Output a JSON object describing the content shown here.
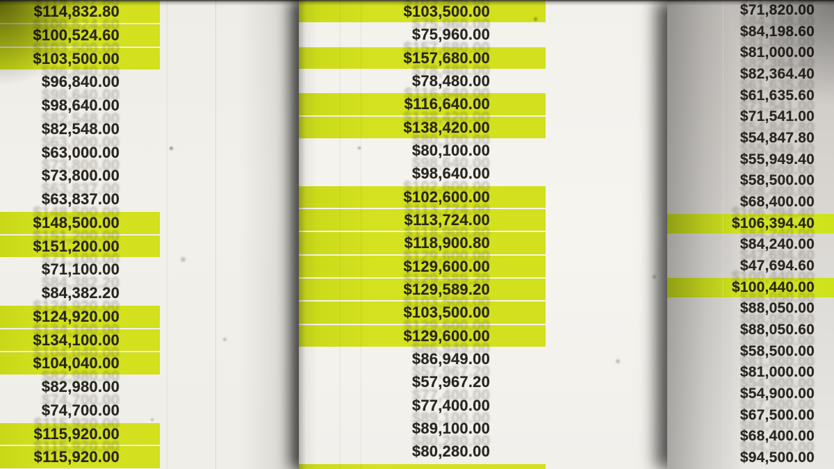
{
  "document": {
    "description_colors": {
      "highlight_yellow": "#d2e01d",
      "text": "#28251f",
      "panel_light_bg": "#f2f0ea",
      "panel_gray_bg": "#d6d3cf"
    },
    "currency_symbol": "$"
  },
  "panels": [
    {
      "name": "left-spreadsheet-column",
      "rows": [
        {
          "value": "$114,832.80",
          "highlighted": true
        },
        {
          "value": "$100,524.60",
          "highlighted": true
        },
        {
          "value": "$103,500.00",
          "highlighted": true
        },
        {
          "value": "$96,840.00",
          "highlighted": false
        },
        {
          "value": "$98,640.00",
          "highlighted": false
        },
        {
          "value": "$82,548.00",
          "highlighted": false
        },
        {
          "value": "$63,000.00",
          "highlighted": false
        },
        {
          "value": "$73,800.00",
          "highlighted": false
        },
        {
          "value": "$63,837.00",
          "highlighted": false
        },
        {
          "value": "$148,500.00",
          "highlighted": true
        },
        {
          "value": "$151,200.00",
          "highlighted": true
        },
        {
          "value": "$71,100.00",
          "highlighted": false
        },
        {
          "value": "$84,382.20",
          "highlighted": false
        },
        {
          "value": "$124,920.00",
          "highlighted": true
        },
        {
          "value": "$134,100.00",
          "highlighted": true
        },
        {
          "value": "$104,040.00",
          "highlighted": true
        },
        {
          "value": "$82,980.00",
          "highlighted": false
        },
        {
          "value": "$74,700.00",
          "highlighted": false
        },
        {
          "value": "$115,920.00",
          "highlighted": true
        },
        {
          "value": "$115,920.00",
          "highlighted": true
        }
      ]
    },
    {
      "name": "middle-spreadsheet-column",
      "rows": [
        {
          "value": "$103,500.00",
          "highlighted": true
        },
        {
          "value": "$75,960.00",
          "highlighted": false
        },
        {
          "value": "$157,680.00",
          "highlighted": true
        },
        {
          "value": "$78,480.00",
          "highlighted": false
        },
        {
          "value": "$116,640.00",
          "highlighted": true
        },
        {
          "value": "$138,420.00",
          "highlighted": true
        },
        {
          "value": "$80,100.00",
          "highlighted": false
        },
        {
          "value": "$98,640.00",
          "highlighted": false
        },
        {
          "value": "$102,600.00",
          "highlighted": true
        },
        {
          "value": "$113,724.00",
          "highlighted": true
        },
        {
          "value": "$118,900.80",
          "highlighted": true
        },
        {
          "value": "$129,600.00",
          "highlighted": true
        },
        {
          "value": "$129,589.20",
          "highlighted": true
        },
        {
          "value": "$103,500.00",
          "highlighted": true
        },
        {
          "value": "$129,600.00",
          "highlighted": true
        },
        {
          "value": "$86,949.00",
          "highlighted": false
        },
        {
          "value": "$57,967.20",
          "highlighted": false
        },
        {
          "value": "$77,400.00",
          "highlighted": false
        },
        {
          "value": "$89,100.00",
          "highlighted": false
        },
        {
          "value": "$80,280.00",
          "highlighted": false
        },
        {
          "value": "",
          "highlighted": true
        }
      ]
    },
    {
      "name": "right-spreadsheet-column",
      "rows": [
        {
          "value": "$71,820.00",
          "highlighted": false
        },
        {
          "value": "$84,198.60",
          "highlighted": false
        },
        {
          "value": "$81,000.00",
          "highlighted": false
        },
        {
          "value": "$82,364.40",
          "highlighted": false
        },
        {
          "value": "$61,635.60",
          "highlighted": false
        },
        {
          "value": "$71,541.00",
          "highlighted": false
        },
        {
          "value": "$54,847.80",
          "highlighted": false
        },
        {
          "value": "$55,949.40",
          "highlighted": false
        },
        {
          "value": "$58,500.00",
          "highlighted": false
        },
        {
          "value": "$68,400.00",
          "highlighted": false
        },
        {
          "value": "$106,394.40",
          "highlighted": true
        },
        {
          "value": "$84,240.00",
          "highlighted": false
        },
        {
          "value": "$47,694.60",
          "highlighted": false
        },
        {
          "value": "$100,440.00",
          "highlighted": true
        },
        {
          "value": "$88,050.00",
          "highlighted": false
        },
        {
          "value": "$88,050.60",
          "highlighted": false
        },
        {
          "value": "$58,500.00",
          "highlighted": false
        },
        {
          "value": "$81,000.00",
          "highlighted": false
        },
        {
          "value": "$54,900.00",
          "highlighted": false
        },
        {
          "value": "$67,500.00",
          "highlighted": false
        },
        {
          "value": "$68,400.00",
          "highlighted": false
        },
        {
          "value": "$94,500.00",
          "highlighted": false
        }
      ]
    }
  ]
}
